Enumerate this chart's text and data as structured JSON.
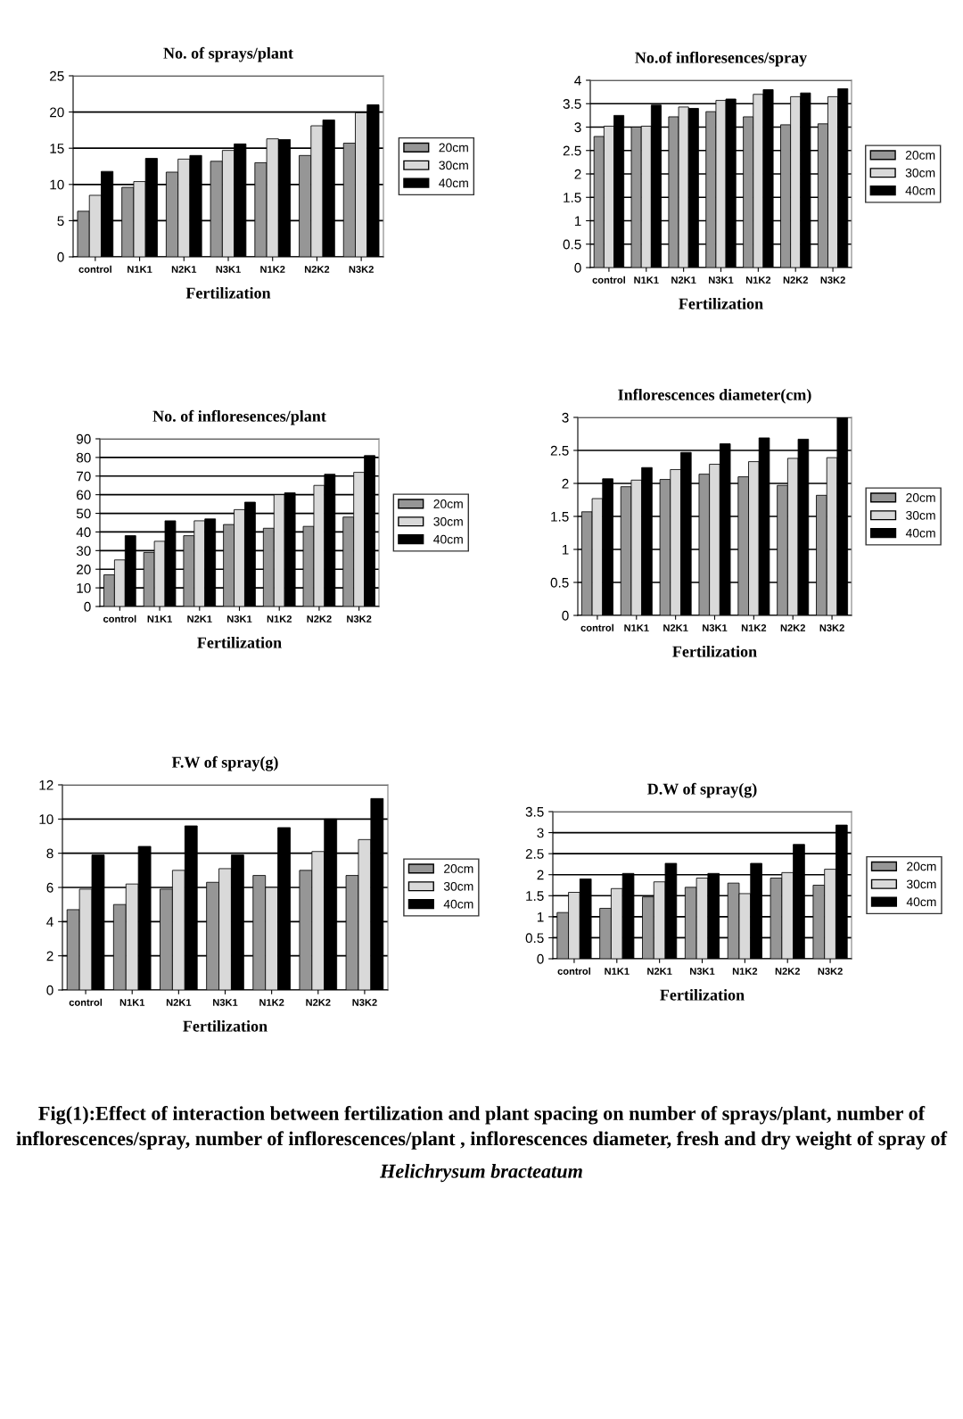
{
  "chart_data": [
    {
      "type": "bar",
      "title": "No. of sprays/plant",
      "xlabel": "Fertilization",
      "categories": [
        "control",
        "N1K1",
        "N2K1",
        "N3K1",
        "N1K2",
        "N2K2",
        "N3K2"
      ],
      "ylim": [
        0,
        25
      ],
      "yticks": [
        0,
        5,
        10,
        15,
        20,
        25
      ],
      "grid": "y",
      "legend": "right",
      "series": [
        {
          "name": "20cm",
          "color": "#969696",
          "values": [
            6.3,
            9.6,
            11.7,
            13.2,
            13.0,
            14.0,
            15.7
          ]
        },
        {
          "name": "30cm",
          "color": "#d9d9d9",
          "values": [
            8.5,
            10.4,
            13.5,
            14.7,
            16.3,
            18.1,
            19.9
          ]
        },
        {
          "name": "40cm",
          "color": "#000000",
          "values": [
            11.8,
            13.6,
            14.0,
            15.6,
            16.2,
            18.9,
            21.0
          ]
        }
      ]
    },
    {
      "type": "bar",
      "title": "No.of infloresences/spray",
      "xlabel": "Fertilization",
      "categories": [
        "control",
        "N1K1",
        "N2K1",
        "N3K1",
        "N1K2",
        "N2K2",
        "N3K2"
      ],
      "ylim": [
        0,
        4
      ],
      "yticks": [
        0,
        0.5,
        1,
        1.5,
        2,
        2.5,
        3,
        3.5,
        4
      ],
      "grid": "y",
      "legend": "right",
      "series": [
        {
          "name": "20cm",
          "color": "#969696",
          "values": [
            2.8,
            3.0,
            3.22,
            3.33,
            3.22,
            3.05,
            3.07
          ]
        },
        {
          "name": "30cm",
          "color": "#d9d9d9",
          "values": [
            3.02,
            3.02,
            3.43,
            3.57,
            3.7,
            3.65,
            3.65
          ]
        },
        {
          "name": "40cm",
          "color": "#000000",
          "values": [
            3.25,
            3.47,
            3.4,
            3.6,
            3.8,
            3.73,
            3.82
          ]
        }
      ]
    },
    {
      "type": "bar",
      "title": "No. of infloresences/plant",
      "xlabel": "Fertilization",
      "categories": [
        "control",
        "N1K1",
        "N2K1",
        "N3K1",
        "N1K2",
        "N2K2",
        "N3K2"
      ],
      "ylim": [
        0,
        90
      ],
      "yticks": [
        0,
        10,
        20,
        30,
        40,
        50,
        60,
        70,
        80,
        90
      ],
      "grid": "y",
      "legend": "right",
      "series": [
        {
          "name": "20cm",
          "color": "#969696",
          "values": [
            17,
            29,
            38,
            44,
            42,
            43,
            48
          ]
        },
        {
          "name": "30cm",
          "color": "#d9d9d9",
          "values": [
            25,
            35,
            46,
            52,
            60,
            65,
            72
          ]
        },
        {
          "name": "40cm",
          "color": "#000000",
          "values": [
            38,
            46,
            47,
            56,
            61,
            71,
            81
          ]
        }
      ]
    },
    {
      "type": "bar",
      "title": "Inflorescences diameter(cm)",
      "xlabel": "Fertilization",
      "categories": [
        "control",
        "N1K1",
        "N2K1",
        "N3K1",
        "N1K2",
        "N2K2",
        "N3K2"
      ],
      "ylim": [
        0,
        3
      ],
      "yticks": [
        0,
        0.5,
        1,
        1.5,
        2,
        2.5,
        3
      ],
      "grid": "y",
      "legend": "right",
      "series": [
        {
          "name": "20cm",
          "color": "#969696",
          "values": [
            1.57,
            1.95,
            2.06,
            2.14,
            2.1,
            1.97,
            1.82
          ]
        },
        {
          "name": "30cm",
          "color": "#d9d9d9",
          "values": [
            1.77,
            2.05,
            2.21,
            2.29,
            2.33,
            2.38,
            2.39
          ]
        },
        {
          "name": "40cm",
          "color": "#000000",
          "values": [
            2.07,
            2.24,
            2.47,
            2.6,
            2.69,
            2.67,
            3.0
          ]
        }
      ]
    },
    {
      "type": "bar",
      "title": "F.W of spray(g)",
      "xlabel": "Fertilization",
      "categories": [
        "control",
        "N1K1",
        "N2K1",
        "N3K1",
        "N1K2",
        "N2K2",
        "N3K2"
      ],
      "ylim": [
        0,
        12
      ],
      "yticks": [
        0,
        2,
        4,
        6,
        8,
        10,
        12
      ],
      "grid": "y",
      "legend": "right",
      "series": [
        {
          "name": "20cm",
          "color": "#969696",
          "values": [
            4.7,
            5.0,
            5.9,
            6.3,
            6.7,
            7.0,
            6.7
          ]
        },
        {
          "name": "30cm",
          "color": "#d9d9d9",
          "values": [
            5.9,
            6.2,
            7.0,
            7.1,
            6.0,
            8.1,
            8.8
          ]
        },
        {
          "name": "40cm",
          "color": "#000000",
          "values": [
            7.9,
            8.4,
            9.6,
            7.9,
            9.5,
            10.0,
            11.2
          ]
        }
      ]
    },
    {
      "type": "bar",
      "title": "D.W of spray(g)",
      "xlabel": "Fertilization",
      "categories": [
        "control",
        "N1K1",
        "N2K1",
        "N3K1",
        "N1K2",
        "N2K2",
        "N3K2"
      ],
      "ylim": [
        0,
        3.5
      ],
      "yticks": [
        0,
        0.5,
        1,
        1.5,
        2,
        2.5,
        3,
        3.5
      ],
      "grid": "y",
      "legend": "right",
      "annotations": [
        "Fig(1):Effect of interaction between fertilization and plant spacing on number of sprays/plant, number of inflorescences/spray, number of inflorescences/plant , inflorescences diameter, fresh and dry weight of spray of",
        "Helichrysum bracteatum"
      ],
      "series": [
        {
          "name": "20cm",
          "color": "#969696",
          "values": [
            1.1,
            1.2,
            1.47,
            1.7,
            1.8,
            1.92,
            1.75
          ]
        },
        {
          "name": "30cm",
          "color": "#d9d9d9",
          "values": [
            1.58,
            1.67,
            1.83,
            1.92,
            1.55,
            2.05,
            2.13
          ]
        },
        {
          "name": "40cm",
          "color": "#000000",
          "values": [
            1.9,
            2.03,
            2.27,
            2.03,
            2.27,
            2.72,
            3.18
          ]
        }
      ]
    }
  ]
}
